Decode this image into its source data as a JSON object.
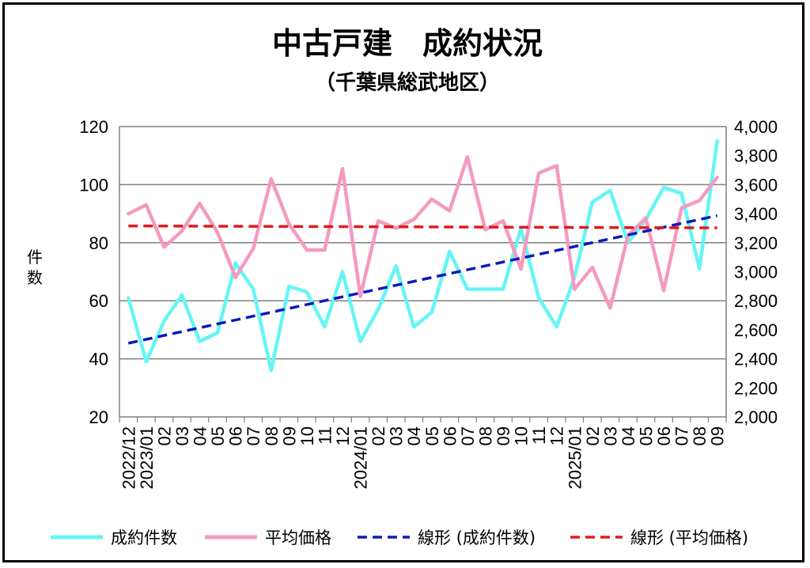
{
  "chart_data": {
    "type": "line",
    "title": "中古戸建　成約状況",
    "subtitle": "（千葉県総武地区）",
    "ylabel": "件数",
    "categories": [
      "2022/12",
      "2023/01",
      "02",
      "03",
      "04",
      "05",
      "06",
      "07",
      "08",
      "09",
      "10",
      "11",
      "12",
      "2024/01",
      "02",
      "03",
      "04",
      "05",
      "06",
      "07",
      "08",
      "09",
      "10",
      "11",
      "12",
      "2025/01",
      "02",
      "03",
      "04",
      "05",
      "06",
      "07",
      "08",
      "09"
    ],
    "y_left": {
      "min": 20,
      "max": 120,
      "ticks": [
        "20",
        "40",
        "60",
        "80",
        "100",
        "120"
      ]
    },
    "y_right": {
      "min": 2000,
      "max": 4000,
      "ticks": [
        "2,000",
        "2,200",
        "2,400",
        "2,600",
        "2,800",
        "3,000",
        "3,200",
        "3,400",
        "3,600",
        "3,800",
        "4,000"
      ]
    },
    "grid": true,
    "legend_position": "bottom",
    "series": [
      {
        "name": "成約件数",
        "axis": "left",
        "color": "#66F5F5",
        "style": "solid",
        "values": [
          61,
          39,
          53,
          62,
          46,
          49,
          73,
          64,
          36,
          65,
          63,
          51,
          70,
          46,
          57,
          72,
          51,
          56,
          77,
          64,
          64,
          64,
          85,
          61,
          51,
          68,
          94,
          98,
          80,
          88,
          99,
          97,
          71,
          115
        ]
      },
      {
        "name": "平均価格",
        "axis": "right",
        "color": "#F49AC1",
        "style": "solid",
        "values": [
          3400,
          3460,
          3170,
          3280,
          3470,
          3270,
          2960,
          3160,
          3640,
          3330,
          3150,
          3150,
          3710,
          2830,
          3350,
          3300,
          3360,
          3500,
          3420,
          3790,
          3290,
          3350,
          3020,
          3680,
          3730,
          2880,
          3030,
          2750,
          3250,
          3370,
          2870,
          3440,
          3490,
          3650
        ]
      },
      {
        "name": "線形 (成約件数)",
        "axis": "left",
        "color": "#0A1AB8",
        "style": "dashed",
        "trend_of": "成約件数"
      },
      {
        "name": "線形 (平均価格)",
        "axis": "right",
        "color": "#E01B1B",
        "style": "dashed",
        "trend_of": "平均価格"
      }
    ]
  }
}
